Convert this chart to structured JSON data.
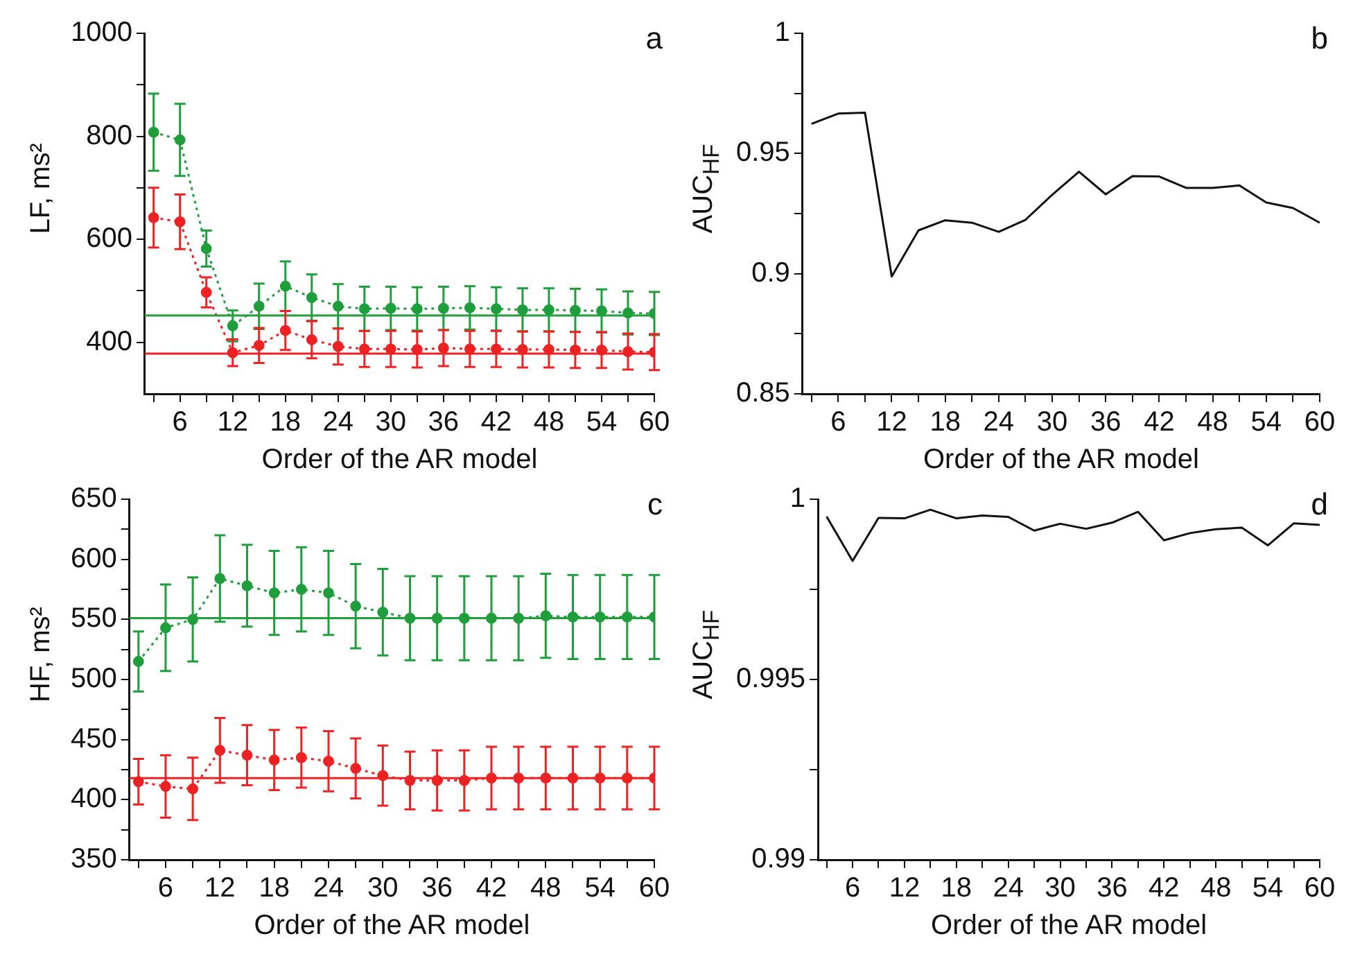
{
  "chart_data": [
    {
      "type": "line",
      "xlabel": "Order of the AR model",
      "ylabel": "LF, ms²",
      "annotations": [
        "a"
      ],
      "marker": "circle",
      "line_style": "dotted",
      "grid": false,
      "x": [
        3,
        6,
        9,
        12,
        15,
        18,
        21,
        24,
        27,
        30,
        33,
        36,
        39,
        42,
        45,
        48,
        51,
        54,
        57,
        60
      ],
      "xlim": [
        2,
        60
      ],
      "xticks": [
        {
          "value": 3,
          "label": null
        },
        6,
        {
          "value": 9,
          "label": null
        },
        12,
        {
          "value": 15,
          "label": null
        },
        18,
        {
          "value": 21,
          "label": null
        },
        24,
        {
          "value": 27,
          "label": null
        },
        30,
        {
          "value": 33,
          "label": null
        },
        36,
        {
          "value": 39,
          "label": null
        },
        42,
        {
          "value": 45,
          "label": null
        },
        48,
        {
          "value": 51,
          "label": null
        },
        54,
        {
          "value": 57,
          "label": null
        },
        60
      ],
      "ylim": [
        300,
        1000
      ],
      "yticks": [
        400,
        {
          "value": 500,
          "label": null
        },
        600,
        {
          "value": 700,
          "label": null
        },
        800,
        {
          "value": 900,
          "label": null
        },
        1000
      ],
      "series": [
        {
          "color": "#1f9e3c",
          "values": [
            808,
            793,
            582,
            432,
            470,
            509,
            487,
            470,
            465,
            466,
            465,
            466,
            467,
            465,
            463,
            463,
            462,
            461,
            457,
            456
          ],
          "errors": [
            75,
            70,
            35,
            30,
            44,
            48,
            45,
            43,
            43,
            42,
            42,
            42,
            42,
            42,
            42,
            42,
            42,
            42,
            42,
            42
          ]
        },
        {
          "color": "#ee2222",
          "values": [
            642,
            634,
            497,
            380,
            394,
            423,
            405,
            392,
            387,
            387,
            386,
            389,
            387,
            387,
            386,
            386,
            385,
            385,
            382,
            381
          ],
          "errors": [
            58,
            53,
            29,
            26,
            34,
            38,
            36,
            35,
            35,
            35,
            35,
            35,
            35,
            35,
            35,
            35,
            35,
            35,
            35,
            35
          ]
        }
      ],
      "ref_lines": [
        {
          "axis": "y",
          "value": 452,
          "color": "#1f9e3c"
        },
        {
          "axis": "y",
          "value": 378,
          "color": "#ee2222"
        }
      ]
    },
    {
      "type": "line",
      "xlabel": "Order of the AR model",
      "ylabel": "AUC$_{HF}$",
      "annotations": [
        "b"
      ],
      "marker": "none",
      "line_style": "solid",
      "grid": false,
      "x": [
        3,
        6,
        9,
        12,
        15,
        18,
        21,
        24,
        27,
        30,
        33,
        36,
        39,
        42,
        45,
        48,
        51,
        54,
        57,
        60
      ],
      "xlim": [
        2,
        60
      ],
      "xticks": [
        {
          "value": 3,
          "label": null
        },
        6,
        {
          "value": 9,
          "label": null
        },
        12,
        {
          "value": 15,
          "label": null
        },
        18,
        {
          "value": 21,
          "label": null
        },
        24,
        {
          "value": 27,
          "label": null
        },
        30,
        {
          "value": 33,
          "label": null
        },
        36,
        {
          "value": 39,
          "label": null
        },
        42,
        {
          "value": 45,
          "label": null
        },
        48,
        {
          "value": 51,
          "label": null
        },
        54,
        {
          "value": 57,
          "label": null
        },
        60
      ],
      "ylim": [
        0.85,
        1
      ],
      "yticks": [
        0.85,
        {
          "value": 0.875,
          "label": null
        },
        0.9,
        {
          "value": 0.925,
          "label": null
        },
        0.95,
        {
          "value": 0.975,
          "label": null
        },
        1
      ],
      "series": [
        {
          "color": "#111111",
          "values": [
            0.9623,
            0.9666,
            0.967,
            0.8988,
            0.918,
            0.9222,
            0.9212,
            0.9174,
            0.9224,
            0.9328,
            0.9424,
            0.933,
            0.9406,
            0.9404,
            0.9357,
            0.9357,
            0.9367,
            0.9296,
            0.9273,
            0.9212
          ]
        }
      ]
    },
    {
      "type": "line",
      "xlabel": "Order of the AR model",
      "ylabel": "HF, ms²",
      "annotations": [
        "c"
      ],
      "marker": "circle",
      "line_style": "dotted",
      "grid": false,
      "x": [
        3,
        6,
        9,
        12,
        15,
        18,
        21,
        24,
        27,
        30,
        33,
        36,
        39,
        42,
        45,
        48,
        51,
        54,
        57,
        60
      ],
      "xlim": [
        2,
        60
      ],
      "xticks": [
        {
          "value": 3,
          "label": null
        },
        6,
        {
          "value": 9,
          "label": null
        },
        12,
        {
          "value": 15,
          "label": null
        },
        18,
        {
          "value": 21,
          "label": null
        },
        24,
        {
          "value": 27,
          "label": null
        },
        30,
        {
          "value": 33,
          "label": null
        },
        36,
        {
          "value": 39,
          "label": null
        },
        42,
        {
          "value": 45,
          "label": null
        },
        48,
        {
          "value": 51,
          "label": null
        },
        54,
        {
          "value": 57,
          "label": null
        },
        60
      ],
      "ylim": [
        350,
        650
      ],
      "yticks": [
        350,
        {
          "value": 375,
          "label": null
        },
        400,
        {
          "value": 425,
          "label": null
        },
        450,
        {
          "value": 475,
          "label": null
        },
        500,
        {
          "value": 525,
          "label": null
        },
        550,
        {
          "value": 575,
          "label": null
        },
        600,
        {
          "value": 625,
          "label": null
        },
        650
      ],
      "series": [
        {
          "color": "#1f9e3c",
          "values": [
            515,
            543,
            550,
            584,
            578,
            572,
            575,
            572,
            561,
            556,
            551,
            551,
            551,
            551,
            551,
            553,
            552,
            552,
            552,
            552
          ],
          "errors": [
            25,
            36,
            35,
            36,
            34,
            35,
            35,
            35,
            35,
            36,
            35,
            35,
            35,
            35,
            35,
            35,
            35,
            35,
            35,
            35
          ]
        },
        {
          "color": "#ee2222",
          "values": [
            415,
            411,
            409,
            441,
            437,
            433,
            435,
            432,
            426,
            420,
            416,
            416,
            416,
            418,
            418,
            418,
            418,
            418,
            418,
            418
          ],
          "errors": [
            19,
            26,
            26,
            27,
            25,
            25,
            25,
            25,
            25,
            25,
            24,
            25,
            25,
            26,
            26,
            26,
            26,
            26,
            26,
            26
          ]
        }
      ],
      "ref_lines": [
        {
          "axis": "y",
          "value": 551,
          "color": "#1f9e3c"
        },
        {
          "axis": "y",
          "value": 418,
          "color": "#ee2222"
        }
      ]
    },
    {
      "type": "line",
      "xlabel": "Order of the AR model",
      "ylabel": "AUC$_{HF}$",
      "annotations": [
        "d"
      ],
      "marker": "none",
      "line_style": "solid",
      "grid": false,
      "x": [
        3,
        6,
        9,
        12,
        15,
        18,
        21,
        24,
        27,
        30,
        33,
        36,
        39,
        42,
        45,
        48,
        51,
        54,
        57,
        60
      ],
      "xlim": [
        2,
        60
      ],
      "xticks": [
        {
          "value": 3,
          "label": null
        },
        6,
        {
          "value": 9,
          "label": null
        },
        12,
        {
          "value": 15,
          "label": null
        },
        18,
        {
          "value": 21,
          "label": null
        },
        24,
        {
          "value": 27,
          "label": null
        },
        30,
        {
          "value": 33,
          "label": null
        },
        36,
        {
          "value": 39,
          "label": null
        },
        42,
        {
          "value": 45,
          "label": null
        },
        48,
        {
          "value": 51,
          "label": null
        },
        54,
        {
          "value": 57,
          "label": null
        },
        60
      ],
      "ylim": [
        0.99,
        1
      ],
      "yticks": [
        0.99,
        {
          "value": 0.9925,
          "label": null
        },
        0.995,
        {
          "value": 0.9975,
          "label": null
        },
        1
      ],
      "series": [
        {
          "color": "#111111",
          "values": [
            0.99952,
            0.99829,
            0.99948,
            0.99947,
            0.99971,
            0.99947,
            0.99955,
            0.99951,
            0.99913,
            0.99932,
            0.99918,
            0.99935,
            0.99965,
            0.99886,
            0.99906,
            0.99917,
            0.99921,
            0.99872,
            0.99933,
            0.99929
          ]
        }
      ]
    }
  ]
}
